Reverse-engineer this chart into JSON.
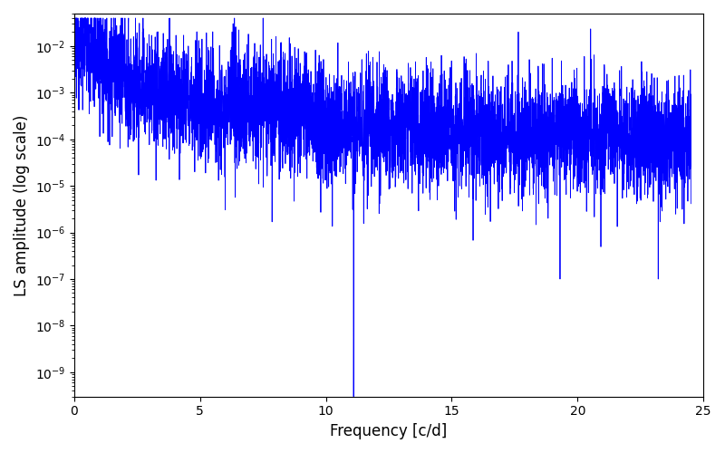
{
  "title": "",
  "xlabel": "Frequency [c/d]",
  "ylabel": "LS amplitude (log scale)",
  "xlim": [
    0,
    25
  ],
  "ylim": [
    3e-10,
    0.05
  ],
  "line_color": "blue",
  "background_color": "#ffffff",
  "figsize": [
    8.0,
    5.0
  ],
  "dpi": 100,
  "seed": 12345,
  "n_points": 5000,
  "freq_max": 24.5
}
